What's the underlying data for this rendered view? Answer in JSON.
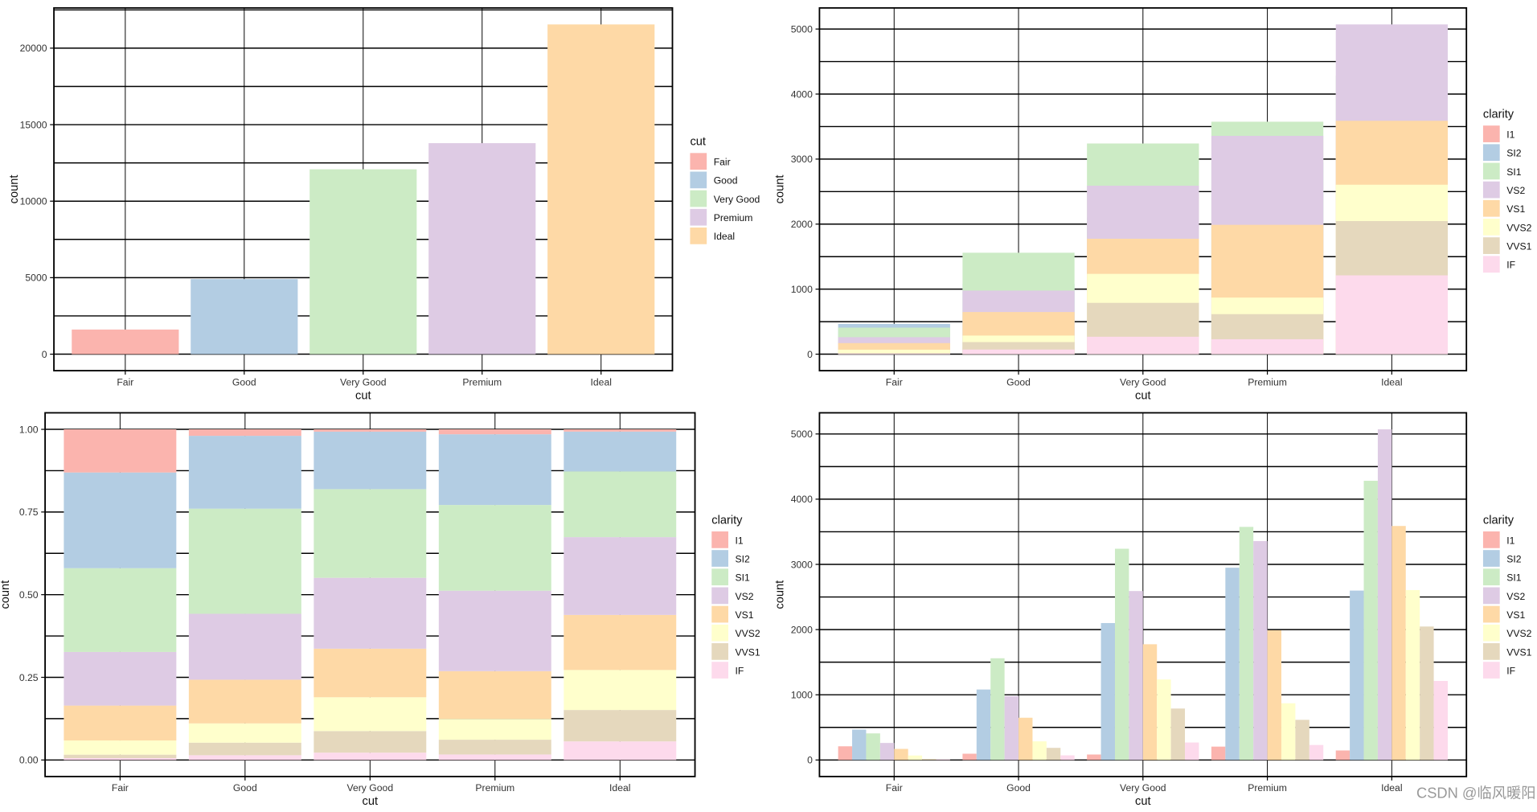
{
  "palette": [
    "#FBB4AE",
    "#B3CDE3",
    "#CCEBC5",
    "#DECBE4",
    "#FED9A6",
    "#FFFFCC",
    "#E5D8BD",
    "#FDDAEC"
  ],
  "watermark": "CSDN @临风暖阳",
  "chart_data": [
    {
      "type": "bar",
      "position": "stack",
      "categories": [
        "Fair",
        "Good",
        "Very Good",
        "Premium",
        "Ideal"
      ],
      "values": [
        1610,
        4906,
        12082,
        13791,
        21551
      ],
      "fill_by": "cut",
      "xlabel": "cut",
      "ylabel": "count",
      "yticks": [
        0,
        5000,
        10000,
        15000,
        20000
      ],
      "ytick_labels": [
        "0",
        "5000",
        "10000",
        "15000",
        "20000"
      ],
      "ylim": [
        0,
        21551
      ],
      "grid": true,
      "legend": {
        "title": "cut",
        "position": "right",
        "entries": [
          "Fair",
          "Good",
          "Very Good",
          "Premium",
          "Ideal"
        ]
      }
    },
    {
      "type": "bar",
      "position": "identity",
      "categories": [
        "Fair",
        "Good",
        "Very Good",
        "Premium",
        "Ideal"
      ],
      "xlabel": "cut",
      "ylabel": "count",
      "yticks": [
        0,
        1000,
        2000,
        3000,
        4000,
        5000
      ],
      "ytick_labels": [
        "0",
        "1000",
        "2000",
        "3000",
        "4000",
        "5000"
      ],
      "ylim": [
        0,
        5071
      ],
      "grid": true,
      "legend": {
        "title": "clarity",
        "position": "right",
        "entries": [
          "I1",
          "SI2",
          "SI1",
          "VS2",
          "VS1",
          "VVS2",
          "VVS1",
          "IF"
        ]
      },
      "series": [
        {
          "name": "I1",
          "values": [
            210,
            96,
            84,
            205,
            146
          ]
        },
        {
          "name": "SI2",
          "values": [
            466,
            1081,
            2100,
            2949,
            2598
          ]
        },
        {
          "name": "SI1",
          "values": [
            408,
            1560,
            3240,
            3575,
            4282
          ]
        },
        {
          "name": "VS2",
          "values": [
            261,
            978,
            2591,
            3357,
            5071
          ]
        },
        {
          "name": "VS1",
          "values": [
            170,
            648,
            1775,
            1989,
            3589
          ]
        },
        {
          "name": "VVS2",
          "values": [
            69,
            286,
            1235,
            870,
            2606
          ]
        },
        {
          "name": "VVS1",
          "values": [
            17,
            186,
            789,
            616,
            2047
          ]
        },
        {
          "name": "IF",
          "values": [
            9,
            71,
            268,
            230,
            1212
          ]
        }
      ]
    },
    {
      "type": "bar",
      "position": "fill",
      "categories": [
        "Fair",
        "Good",
        "Very Good",
        "Premium",
        "Ideal"
      ],
      "xlabel": "cut",
      "ylabel": "count",
      "yticks": [
        0,
        0.25,
        0.5,
        0.75,
        1
      ],
      "ytick_labels": [
        "0.00",
        "0.25",
        "0.50",
        "0.75",
        "1.00"
      ],
      "ylim": [
        0,
        1
      ],
      "grid": true,
      "legend": {
        "title": "clarity",
        "position": "right",
        "entries": [
          "I1",
          "SI2",
          "SI1",
          "VS2",
          "VS1",
          "VVS2",
          "VVS1",
          "IF"
        ]
      },
      "series": [
        {
          "name": "I1",
          "values": [
            210,
            96,
            84,
            205,
            146
          ]
        },
        {
          "name": "SI2",
          "values": [
            466,
            1081,
            2100,
            2949,
            2598
          ]
        },
        {
          "name": "SI1",
          "values": [
            408,
            1560,
            3240,
            3575,
            4282
          ]
        },
        {
          "name": "VS2",
          "values": [
            261,
            978,
            2591,
            3357,
            5071
          ]
        },
        {
          "name": "VS1",
          "values": [
            170,
            648,
            1775,
            1989,
            3589
          ]
        },
        {
          "name": "VVS2",
          "values": [
            69,
            286,
            1235,
            870,
            2606
          ]
        },
        {
          "name": "VVS1",
          "values": [
            17,
            186,
            789,
            616,
            2047
          ]
        },
        {
          "name": "IF",
          "values": [
            9,
            71,
            268,
            230,
            1212
          ]
        }
      ]
    },
    {
      "type": "bar",
      "position": "dodge",
      "categories": [
        "Fair",
        "Good",
        "Very Good",
        "Premium",
        "Ideal"
      ],
      "xlabel": "cut",
      "ylabel": "count",
      "yticks": [
        0,
        1000,
        2000,
        3000,
        4000,
        5000
      ],
      "ytick_labels": [
        "0",
        "1000",
        "2000",
        "3000",
        "4000",
        "5000"
      ],
      "ylim": [
        0,
        5071
      ],
      "grid": true,
      "legend": {
        "title": "clarity",
        "position": "right",
        "entries": [
          "I1",
          "SI2",
          "SI1",
          "VS2",
          "VS1",
          "VVS2",
          "VVS1",
          "IF"
        ]
      },
      "series": [
        {
          "name": "I1",
          "values": [
            210,
            96,
            84,
            205,
            146
          ]
        },
        {
          "name": "SI2",
          "values": [
            466,
            1081,
            2100,
            2949,
            2598
          ]
        },
        {
          "name": "SI1",
          "values": [
            408,
            1560,
            3240,
            3575,
            4282
          ]
        },
        {
          "name": "VS2",
          "values": [
            261,
            978,
            2591,
            3357,
            5071
          ]
        },
        {
          "name": "VS1",
          "values": [
            170,
            648,
            1775,
            1989,
            3589
          ]
        },
        {
          "name": "VVS2",
          "values": [
            69,
            286,
            1235,
            870,
            2606
          ]
        },
        {
          "name": "VVS1",
          "values": [
            17,
            186,
            789,
            616,
            2047
          ]
        },
        {
          "name": "IF",
          "values": [
            9,
            71,
            268,
            230,
            1212
          ]
        }
      ]
    }
  ]
}
